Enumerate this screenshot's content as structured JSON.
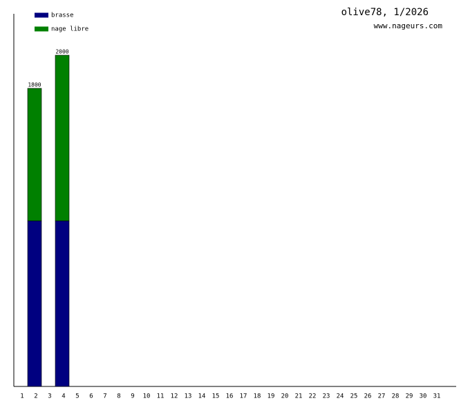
{
  "chart_data": {
    "type": "stacked-bar",
    "title": "olive78, 1/2026",
    "subtitle": "www.nageurs.com",
    "categories": [
      "1",
      "2",
      "3",
      "4",
      "5",
      "6",
      "7",
      "8",
      "9",
      "10",
      "11",
      "12",
      "13",
      "14",
      "15",
      "16",
      "17",
      "18",
      "19",
      "20",
      "21",
      "22",
      "23",
      "24",
      "25",
      "26",
      "27",
      "28",
      "29",
      "30",
      "31"
    ],
    "series": [
      {
        "name": "brasse",
        "color": "#000080",
        "values": [
          0,
          1000,
          0,
          1000,
          0,
          0,
          0,
          0,
          0,
          0,
          0,
          0,
          0,
          0,
          0,
          0,
          0,
          0,
          0,
          0,
          0,
          0,
          0,
          0,
          0,
          0,
          0,
          0,
          0,
          0,
          0
        ]
      },
      {
        "name": "nage libre",
        "color": "#008000",
        "values": [
          0,
          800,
          0,
          1000,
          0,
          0,
          0,
          0,
          0,
          0,
          0,
          0,
          0,
          0,
          0,
          0,
          0,
          0,
          0,
          0,
          0,
          0,
          0,
          0,
          0,
          0,
          0,
          0,
          0,
          0,
          0
        ]
      }
    ],
    "totals": [
      null,
      1800,
      null,
      2000,
      null,
      null,
      null,
      null,
      null,
      null,
      null,
      null,
      null,
      null,
      null,
      null,
      null,
      null,
      null,
      null,
      null,
      null,
      null,
      null,
      null,
      null,
      null,
      null,
      null,
      null,
      null
    ],
    "ylim": [
      0,
      2250
    ]
  }
}
